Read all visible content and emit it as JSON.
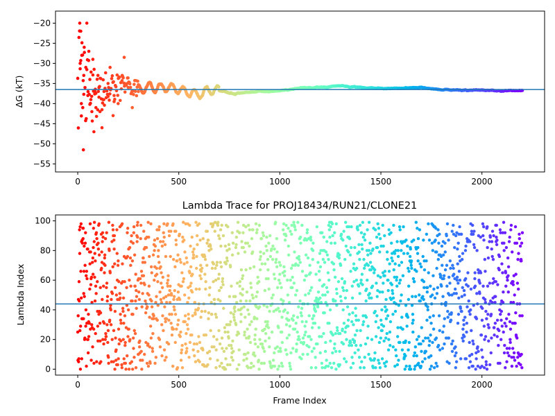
{
  "chart_data": [
    {
      "type": "scatter",
      "title": "",
      "xlabel": "",
      "ylabel": "ΔG (kT)",
      "xlim": [
        -110,
        2310
      ],
      "ylim": [
        -57,
        -17
      ],
      "xticks": [
        0,
        500,
        1000,
        1500,
        2000
      ],
      "yticks": [
        -55,
        -50,
        -45,
        -40,
        -35,
        -30,
        -25,
        -20
      ],
      "hline": -36.5,
      "hline_color": "#1f77b4",
      "colormap": "rainbow (reversed along frame index: red at frame 0, violet at frame 2200)",
      "n_frames": 2200,
      "series": [
        {
          "description": "running free-energy estimate per frame",
          "early_frames_scatter": [
            [
              10,
              -20
            ],
            [
              12,
              -30
            ],
            [
              15,
              -22
            ],
            [
              18,
              -40
            ],
            [
              20,
              -28
            ],
            [
              25,
              -41
            ],
            [
              28,
              -51.5
            ],
            [
              30,
              -33
            ],
            [
              32,
              -26
            ],
            [
              40,
              -31
            ],
            [
              45,
              -20
            ],
            [
              50,
              -38
            ],
            [
              55,
              -27
            ],
            [
              60,
              -34
            ],
            [
              65,
              -39
            ],
            [
              70,
              -42
            ],
            [
              75,
              -29
            ],
            [
              80,
              -47
            ],
            [
              85,
              -37
            ],
            [
              90,
              -41
            ],
            [
              100,
              -33
            ],
            [
              105,
              -36
            ],
            [
              110,
              -42
            ],
            [
              120,
              -46
            ],
            [
              125,
              -39
            ],
            [
              130,
              -37
            ],
            [
              150,
              -35
            ],
            [
              160,
              -31
            ],
            [
              175,
              -43
            ],
            [
              180,
              -38
            ],
            [
              200,
              -40
            ],
            [
              220,
              -33
            ],
            [
              230,
              -28.5
            ],
            [
              250,
              -36
            ],
            [
              270,
              -41
            ],
            [
              300,
              -37
            ]
          ],
          "trend": [
            [
              300,
              -36.5
            ],
            [
              400,
              -36
            ],
            [
              500,
              -36.5
            ],
            [
              600,
              -37.5
            ],
            [
              700,
              -36.3
            ],
            [
              800,
              -37.5
            ],
            [
              900,
              -37
            ],
            [
              1000,
              -36.8
            ],
            [
              1100,
              -36.2
            ],
            [
              1200,
              -35.9
            ],
            [
              1300,
              -35.5
            ],
            [
              1400,
              -36
            ],
            [
              1500,
              -36.3
            ],
            [
              1600,
              -36.2
            ],
            [
              1700,
              -36
            ],
            [
              1800,
              -36.6
            ],
            [
              1900,
              -36.8
            ],
            [
              2000,
              -36.6
            ],
            [
              2100,
              -36.9
            ],
            [
              2200,
              -36.8
            ]
          ]
        }
      ]
    },
    {
      "type": "scatter",
      "title": "Lambda Trace for PROJ18434/RUN21/CLONE21",
      "xlabel": "Frame Index",
      "ylabel": "Lambda Index",
      "xlim": [
        -110,
        2310
      ],
      "ylim": [
        -4,
        104
      ],
      "xticks": [
        0,
        500,
        1000,
        1500,
        2000
      ],
      "yticks": [
        0,
        20,
        40,
        60,
        80,
        100
      ],
      "hline": 44,
      "hline_color": "#1f77b4",
      "value_range": [
        0,
        99
      ],
      "n_frames": 2200,
      "colormap": "rainbow (reversed along frame index: red at frame 0, violet at frame 2200)"
    }
  ]
}
